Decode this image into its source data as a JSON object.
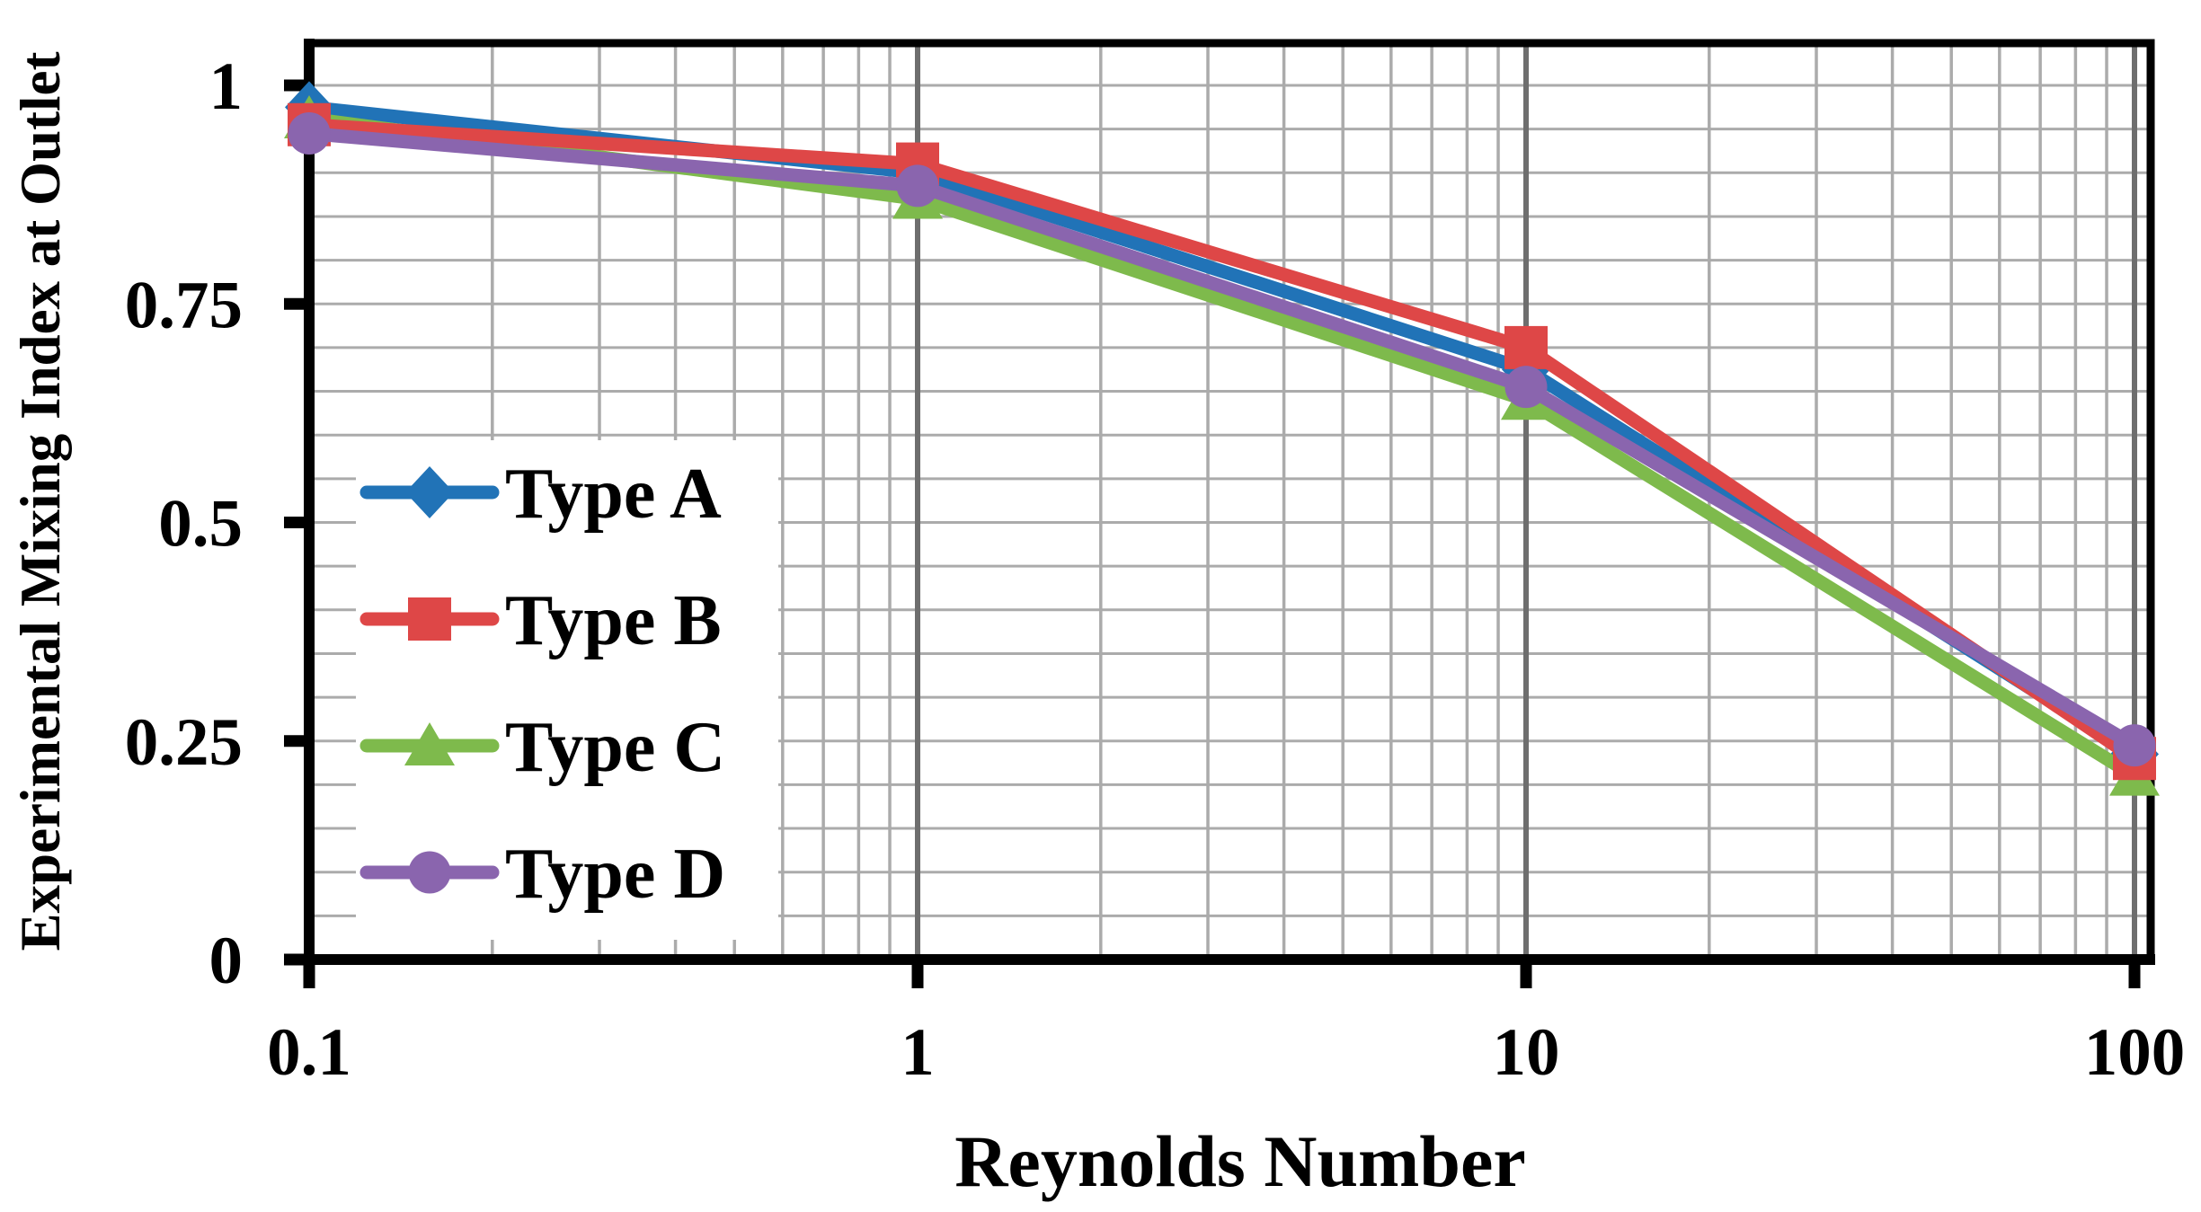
{
  "chart_data": {
    "type": "line",
    "title": "",
    "xlabel": "Reynolds Number",
    "ylabel": "Experimental Mixing Index at Outlet",
    "x_scale": "log",
    "x": [
      0.1,
      1,
      10,
      100
    ],
    "x_tick_labels": [
      "0.1",
      "1",
      "10",
      "100"
    ],
    "y_ticks": [
      1,
      0.75,
      0.5,
      0.25,
      0
    ],
    "y_tick_labels": [
      "1",
      "0.75",
      "0.5",
      "0.25",
      "0"
    ],
    "ylim": [
      0,
      1.05
    ],
    "xlim": [
      0.1,
      100
    ],
    "y_minor_step": 0.05,
    "grid": true,
    "legend_position": "inside-left",
    "series": [
      {
        "name": "Type A",
        "marker": "diamond",
        "color": "#2173B7",
        "values": [
          0.975,
          0.9,
          0.675,
          0.235
        ]
      },
      {
        "name": "Type B",
        "marker": "square",
        "color": "#DE4747",
        "values": [
          0.955,
          0.91,
          0.7,
          0.23
        ]
      },
      {
        "name": "Type C",
        "marker": "triangle",
        "color": "#7EBA4C",
        "values": [
          0.962,
          0.87,
          0.64,
          0.21
        ]
      },
      {
        "name": "Type D",
        "marker": "circle",
        "color": "#8A65AE",
        "values": [
          0.945,
          0.885,
          0.655,
          0.245
        ]
      }
    ],
    "paint_order": [
      0,
      2,
      1,
      3
    ],
    "colors": {
      "background": "#FFFFFF",
      "axis": "#000000",
      "grid_minor": "#ABABAB",
      "grid_major_vertical": "#6E6E6E",
      "legend_background": "#FFFFFF"
    }
  }
}
